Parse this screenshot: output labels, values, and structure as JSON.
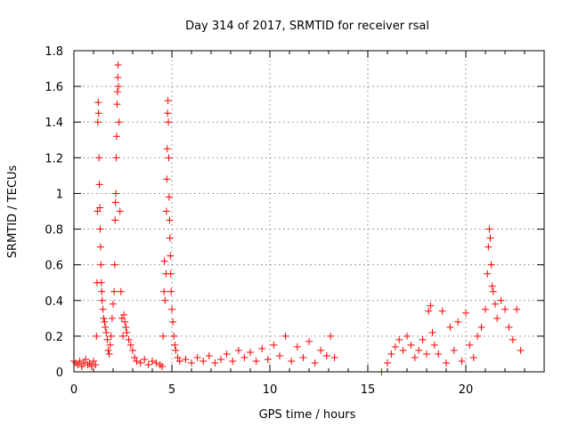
{
  "chart_data": {
    "type": "scatter",
    "title": "Day 314 of 2017, SRMTID for receiver rsal",
    "xlabel": "GPS time / hours",
    "ylabel": "SRMTID / TECUs",
    "xlim": [
      0,
      24
    ],
    "ylim": [
      0,
      1.8
    ],
    "xticks": [
      0,
      5,
      10,
      15,
      20
    ],
    "xtick_labels": [
      "0",
      "5",
      "10",
      "15",
      "20"
    ],
    "yticks": [
      0,
      0.2,
      0.4,
      0.6,
      0.8,
      1.0,
      1.2,
      1.4,
      1.6,
      1.8
    ],
    "ytick_labels": [
      "0",
      "0.2",
      "0.4",
      "0.6",
      "0.8",
      "1",
      "1.2",
      "1.4",
      "1.6",
      "1.8"
    ],
    "grid": true,
    "marker": "+",
    "color": "#ff0000",
    "series": [
      {
        "name": "rsal",
        "points": [
          [
            0.0,
            0.06
          ],
          [
            0.1,
            0.05
          ],
          [
            0.2,
            0.04
          ],
          [
            0.3,
            0.06
          ],
          [
            0.4,
            0.03
          ],
          [
            0.5,
            0.05
          ],
          [
            0.6,
            0.07
          ],
          [
            0.7,
            0.04
          ],
          [
            0.8,
            0.05
          ],
          [
            0.9,
            0.03
          ],
          [
            1.0,
            0.06
          ],
          [
            1.1,
            0.04
          ],
          [
            1.15,
            0.2
          ],
          [
            1.18,
            0.5
          ],
          [
            1.2,
            0.9
          ],
          [
            1.22,
            1.4
          ],
          [
            1.24,
            1.51
          ],
          [
            1.26,
            1.45
          ],
          [
            1.28,
            1.2
          ],
          [
            1.3,
            1.05
          ],
          [
            1.32,
            0.92
          ],
          [
            1.34,
            0.8
          ],
          [
            1.36,
            0.7
          ],
          [
            1.38,
            0.6
          ],
          [
            1.4,
            0.5
          ],
          [
            1.42,
            0.45
          ],
          [
            1.44,
            0.4
          ],
          [
            1.48,
            0.35
          ],
          [
            1.52,
            0.3
          ],
          [
            1.56,
            0.28
          ],
          [
            1.6,
            0.25
          ],
          [
            1.65,
            0.22
          ],
          [
            1.7,
            0.18
          ],
          [
            1.75,
            0.12
          ],
          [
            1.8,
            0.1
          ],
          [
            1.85,
            0.15
          ],
          [
            1.9,
            0.2
          ],
          [
            1.95,
            0.3
          ],
          [
            2.0,
            0.38
          ],
          [
            2.05,
            0.45
          ],
          [
            2.08,
            0.6
          ],
          [
            2.1,
            0.85
          ],
          [
            2.12,
            0.95
          ],
          [
            2.14,
            1.0
          ],
          [
            2.16,
            1.2
          ],
          [
            2.18,
            1.32
          ],
          [
            2.2,
            1.5
          ],
          [
            2.22,
            1.57
          ],
          [
            2.24,
            1.65
          ],
          [
            2.25,
            1.72
          ],
          [
            2.27,
            1.6
          ],
          [
            2.3,
            1.4
          ],
          [
            2.35,
            0.9
          ],
          [
            2.4,
            0.45
          ],
          [
            2.45,
            0.3
          ],
          [
            2.5,
            0.2
          ],
          [
            2.55,
            0.32
          ],
          [
            2.6,
            0.28
          ],
          [
            2.65,
            0.25
          ],
          [
            2.7,
            0.22
          ],
          [
            2.8,
            0.18
          ],
          [
            2.9,
            0.15
          ],
          [
            3.0,
            0.12
          ],
          [
            3.1,
            0.08
          ],
          [
            3.2,
            0.06
          ],
          [
            3.4,
            0.05
          ],
          [
            3.6,
            0.07
          ],
          [
            3.8,
            0.04
          ],
          [
            4.0,
            0.06
          ],
          [
            4.2,
            0.05
          ],
          [
            4.4,
            0.04
          ],
          [
            4.5,
            0.03
          ],
          [
            4.55,
            0.2
          ],
          [
            4.6,
            0.45
          ],
          [
            4.62,
            0.62
          ],
          [
            4.65,
            0.4
          ],
          [
            4.7,
            0.55
          ],
          [
            4.72,
            0.9
          ],
          [
            4.74,
            1.08
          ],
          [
            4.76,
            1.25
          ],
          [
            4.78,
            1.45
          ],
          [
            4.8,
            1.52
          ],
          [
            4.82,
            1.4
          ],
          [
            4.84,
            1.2
          ],
          [
            4.86,
            0.98
          ],
          [
            4.88,
            0.85
          ],
          [
            4.9,
            0.75
          ],
          [
            4.92,
            0.65
          ],
          [
            4.94,
            0.55
          ],
          [
            4.96,
            0.45
          ],
          [
            5.0,
            0.35
          ],
          [
            5.05,
            0.28
          ],
          [
            5.1,
            0.2
          ],
          [
            5.15,
            0.15
          ],
          [
            5.2,
            0.12
          ],
          [
            5.3,
            0.08
          ],
          [
            5.4,
            0.06
          ],
          [
            5.7,
            0.07
          ],
          [
            6.0,
            0.05
          ],
          [
            6.3,
            0.08
          ],
          [
            6.6,
            0.06
          ],
          [
            6.9,
            0.09
          ],
          [
            7.2,
            0.05
          ],
          [
            7.5,
            0.07
          ],
          [
            7.8,
            0.1
          ],
          [
            8.1,
            0.06
          ],
          [
            8.4,
            0.12
          ],
          [
            8.7,
            0.08
          ],
          [
            9.0,
            0.11
          ],
          [
            9.3,
            0.06
          ],
          [
            9.6,
            0.13
          ],
          [
            9.9,
            0.07
          ],
          [
            10.2,
            0.15
          ],
          [
            10.5,
            0.09
          ],
          [
            10.8,
            0.2
          ],
          [
            11.1,
            0.06
          ],
          [
            11.4,
            0.14
          ],
          [
            11.7,
            0.08
          ],
          [
            12.0,
            0.17
          ],
          [
            12.3,
            0.05
          ],
          [
            12.6,
            0.12
          ],
          [
            12.9,
            0.09
          ],
          [
            13.1,
            0.2
          ],
          [
            13.3,
            0.08
          ],
          [
            15.7,
            0.0
          ],
          [
            16.0,
            0.05
          ],
          [
            16.2,
            0.1
          ],
          [
            16.4,
            0.14
          ],
          [
            16.6,
            0.18
          ],
          [
            16.8,
            0.12
          ],
          [
            17.0,
            0.2
          ],
          [
            17.2,
            0.15
          ],
          [
            17.4,
            0.08
          ],
          [
            17.6,
            0.12
          ],
          [
            17.8,
            0.18
          ],
          [
            18.0,
            0.1
          ],
          [
            18.1,
            0.34
          ],
          [
            18.2,
            0.37
          ],
          [
            18.3,
            0.22
          ],
          [
            18.4,
            0.15
          ],
          [
            18.6,
            0.1
          ],
          [
            18.8,
            0.34
          ],
          [
            19.0,
            0.05
          ],
          [
            19.2,
            0.25
          ],
          [
            19.4,
            0.12
          ],
          [
            19.6,
            0.28
          ],
          [
            19.8,
            0.06
          ],
          [
            20.0,
            0.33
          ],
          [
            20.2,
            0.15
          ],
          [
            20.4,
            0.08
          ],
          [
            20.6,
            0.2
          ],
          [
            20.8,
            0.25
          ],
          [
            21.0,
            0.35
          ],
          [
            21.1,
            0.55
          ],
          [
            21.15,
            0.7
          ],
          [
            21.2,
            0.8
          ],
          [
            21.25,
            0.75
          ],
          [
            21.3,
            0.6
          ],
          [
            21.35,
            0.48
          ],
          [
            21.4,
            0.45
          ],
          [
            21.5,
            0.38
          ],
          [
            21.6,
            0.3
          ],
          [
            21.8,
            0.4
          ],
          [
            22.0,
            0.35
          ],
          [
            22.2,
            0.25
          ],
          [
            22.4,
            0.18
          ],
          [
            22.6,
            0.35
          ],
          [
            22.8,
            0.12
          ]
        ]
      }
    ]
  }
}
